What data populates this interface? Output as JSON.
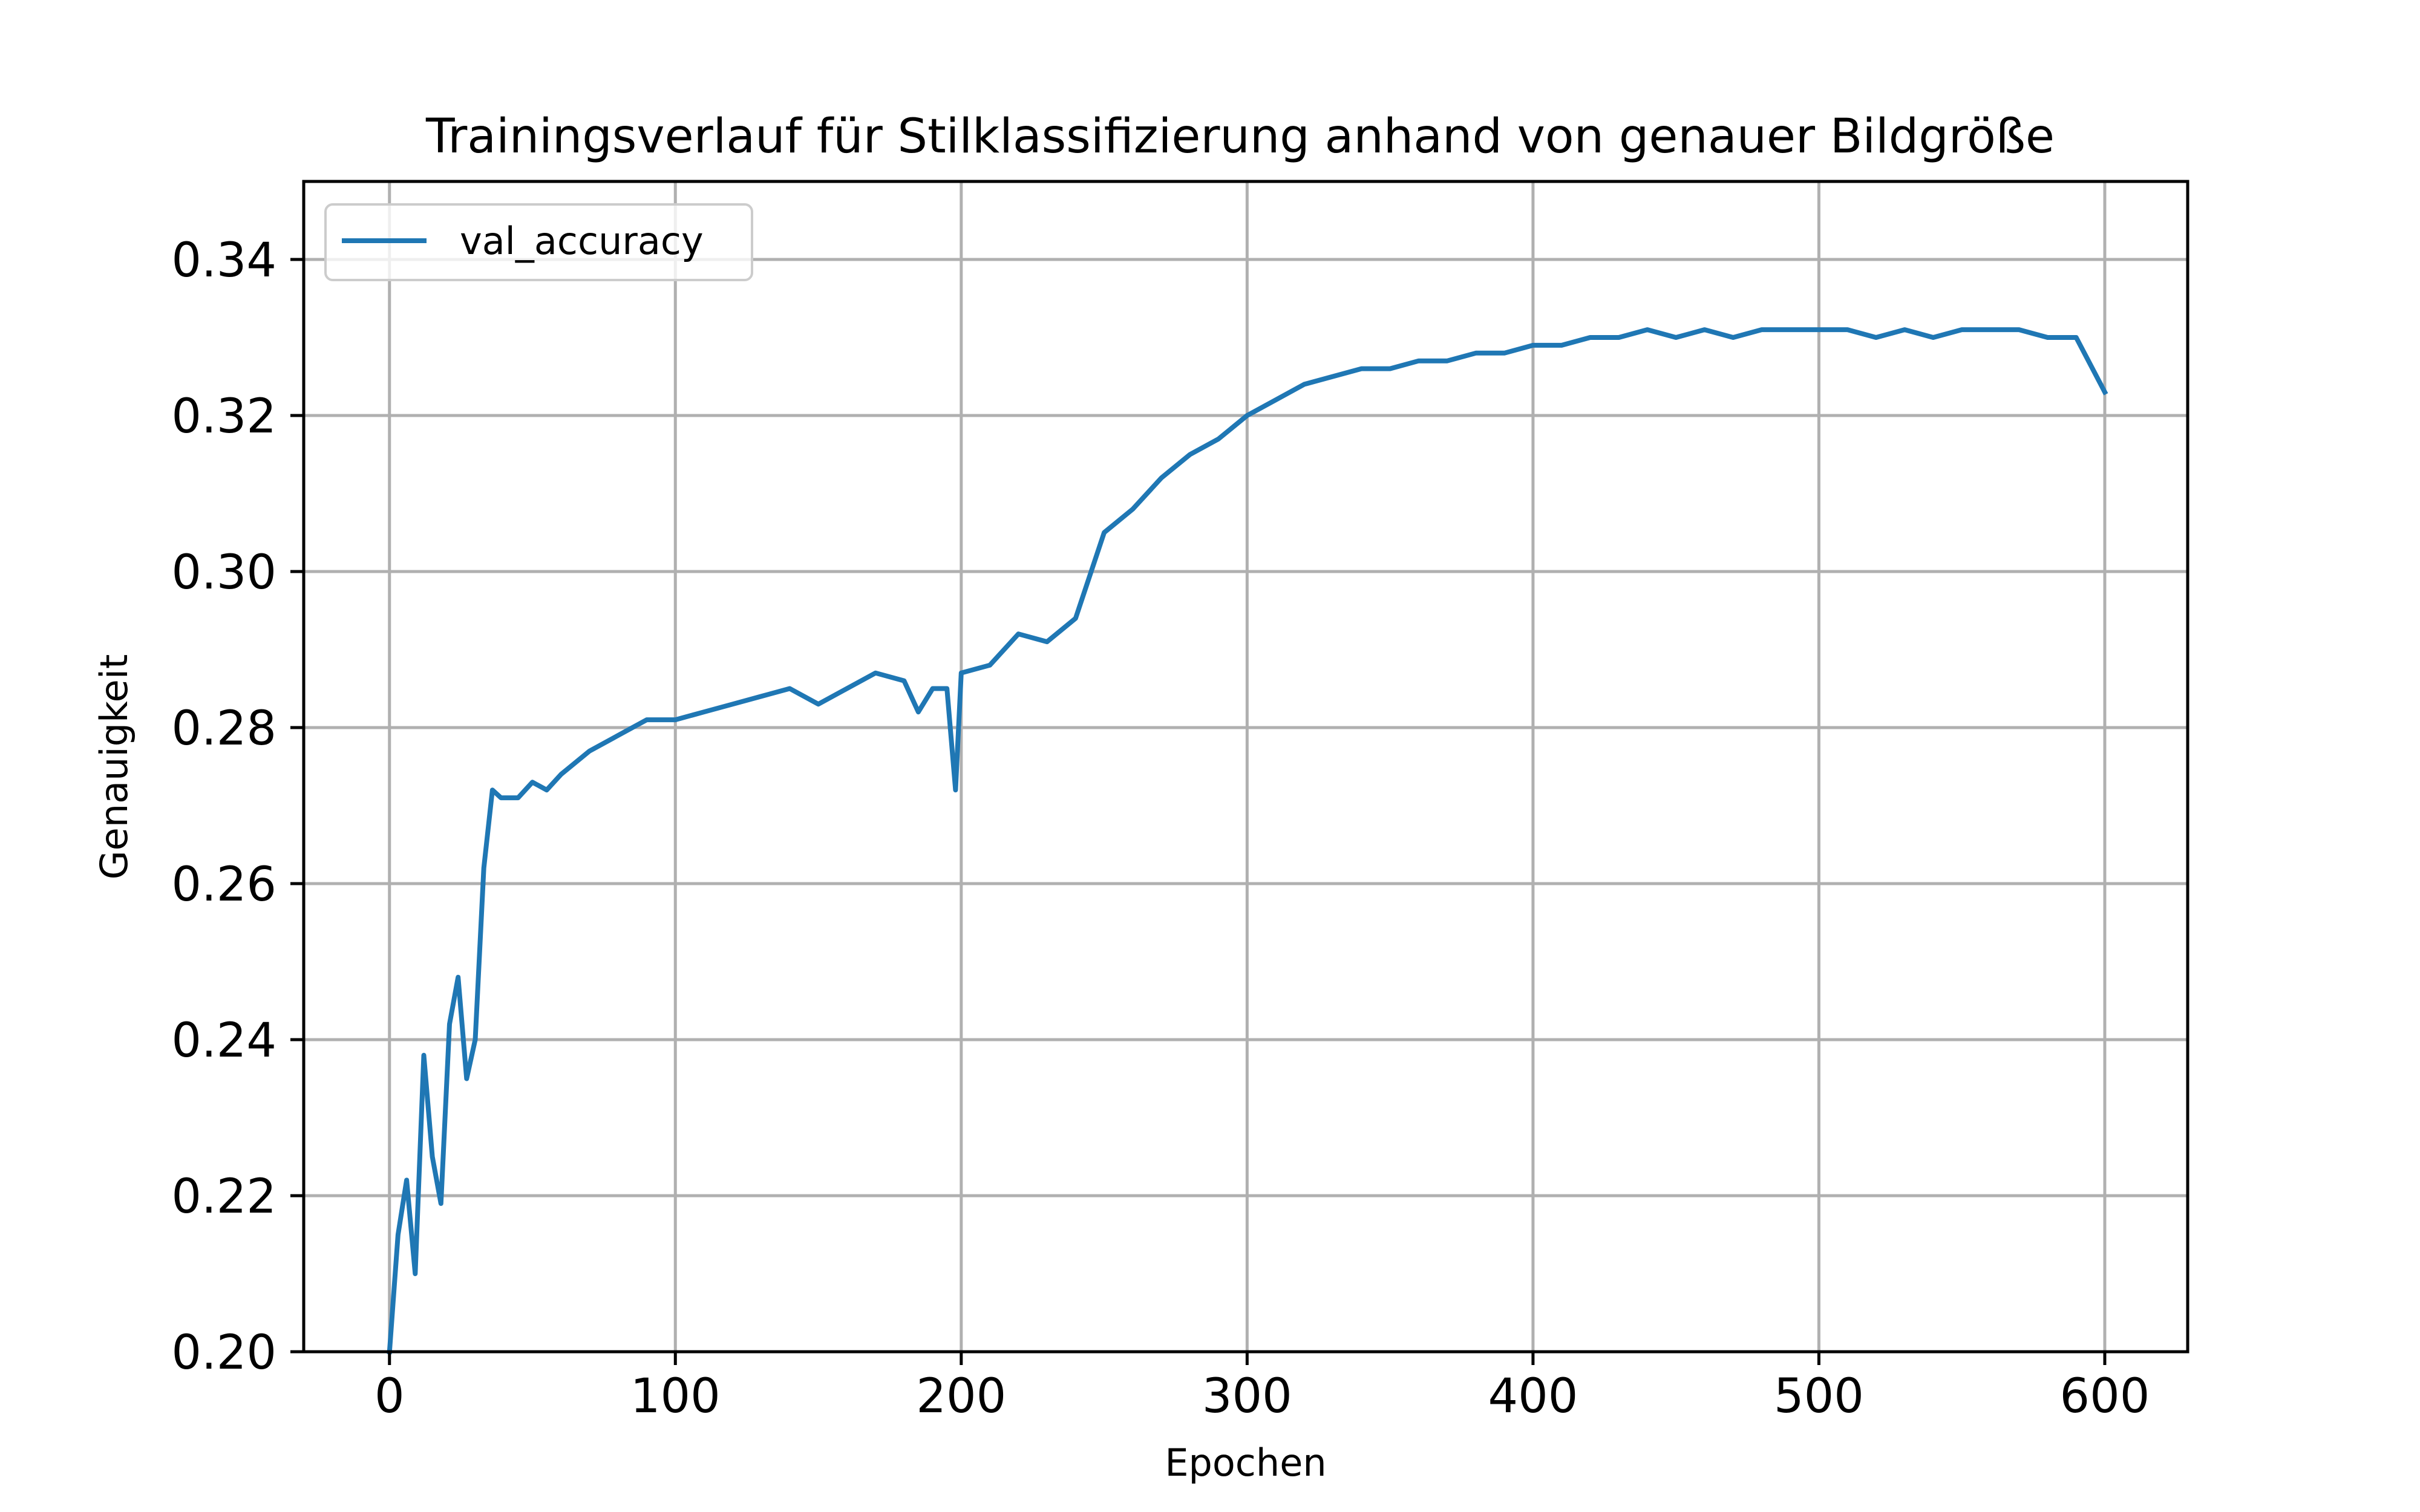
{
  "chart_data": {
    "type": "line",
    "title": "Trainingsverlauf für Stilklassifizierung anhand von genauer Bildgröße",
    "xlabel": "Epochen",
    "ylabel": "Genauigkeit",
    "xlim": [
      -30,
      629
    ],
    "ylim": [
      0.2,
      0.35
    ],
    "xticks": [
      0,
      100,
      200,
      300,
      400,
      500,
      600
    ],
    "xtick_labels": [
      "0",
      "100",
      "200",
      "300",
      "400",
      "500",
      "600"
    ],
    "yticks": [
      0.2,
      0.22,
      0.24,
      0.26,
      0.28,
      0.3,
      0.32,
      0.34
    ],
    "ytick_labels": [
      "0.20",
      "0.22",
      "0.24",
      "0.26",
      "0.28",
      "0.30",
      "0.32",
      "0.34"
    ],
    "grid": true,
    "legend_position": "top-left",
    "series": [
      {
        "name": "val_accuracy",
        "color": "#1f77b4",
        "x": [
          0,
          3,
          6,
          9,
          12,
          15,
          18,
          21,
          24,
          27,
          30,
          33,
          36,
          39,
          45,
          50,
          55,
          60,
          70,
          80,
          90,
          100,
          110,
          120,
          130,
          140,
          150,
          160,
          170,
          180,
          185,
          190,
          195,
          198,
          200,
          210,
          220,
          230,
          240,
          250,
          260,
          270,
          280,
          290,
          300,
          310,
          320,
          330,
          340,
          350,
          360,
          370,
          380,
          390,
          400,
          410,
          420,
          430,
          440,
          450,
          460,
          470,
          480,
          490,
          500,
          510,
          520,
          530,
          540,
          550,
          560,
          570,
          580,
          590,
          600
        ],
        "y": [
          0.2,
          0.215,
          0.222,
          0.21,
          0.238,
          0.225,
          0.219,
          0.242,
          0.248,
          0.235,
          0.24,
          0.262,
          0.272,
          0.271,
          0.271,
          0.273,
          0.272,
          0.274,
          0.277,
          0.279,
          0.281,
          0.281,
          0.282,
          0.283,
          0.284,
          0.285,
          0.283,
          0.285,
          0.287,
          0.286,
          0.282,
          0.285,
          0.285,
          0.272,
          0.287,
          0.288,
          0.292,
          0.291,
          0.294,
          0.305,
          0.308,
          0.312,
          0.315,
          0.317,
          0.32,
          0.322,
          0.324,
          0.325,
          0.326,
          0.326,
          0.327,
          0.327,
          0.328,
          0.328,
          0.329,
          0.329,
          0.33,
          0.33,
          0.331,
          0.33,
          0.331,
          0.33,
          0.331,
          0.331,
          0.331,
          0.331,
          0.33,
          0.331,
          0.33,
          0.331,
          0.331,
          0.331,
          0.33,
          0.33,
          0.323
        ]
      }
    ]
  }
}
